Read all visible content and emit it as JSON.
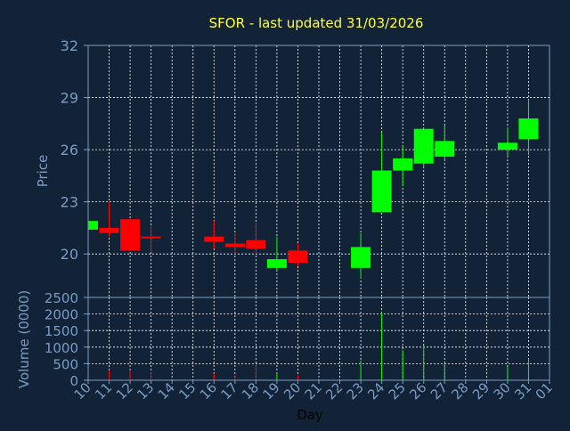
{
  "colors": {
    "background": "#122337",
    "grid": "#ffffff",
    "axis_text": "#7a9cc4",
    "title": "#ffff3c",
    "up": "#00ff00",
    "down": "#ff0000",
    "xlabel": "#000000"
  },
  "chart_data": {
    "type": "candlestick",
    "title": "SFOR - last updated 31/03/2026",
    "ylabel": "Price",
    "volume_ylabel": "Volume (0000)",
    "xlabel": "Day",
    "price_ylim": [
      17.5,
      32
    ],
    "price_ticks": [
      20,
      23,
      26,
      29,
      32
    ],
    "volume_ylim": [
      0,
      2500
    ],
    "volume_ticks": [
      0,
      500,
      1000,
      1500,
      2000,
      2500
    ],
    "x_tick_labels": [
      "10",
      "11",
      "12",
      "13",
      "14",
      "15",
      "16",
      "17",
      "18",
      "19",
      "20",
      "21",
      "22",
      "23",
      "24",
      "25",
      "26",
      "27",
      "28",
      "29",
      "30",
      "31",
      "01"
    ],
    "grid": true,
    "candles": [
      {
        "day": "10",
        "open": 21.4,
        "close": 21.9,
        "high": 21.9,
        "low": 21.4,
        "volume": 0
      },
      {
        "day": "11",
        "open": 21.5,
        "close": 21.2,
        "high": 23.0,
        "low": 21.0,
        "volume": 300
      },
      {
        "day": "12",
        "open": 22.0,
        "close": 20.2,
        "high": 22.0,
        "low": 20.2,
        "volume": 300
      },
      {
        "day": "13",
        "open": 21.0,
        "close": 20.9,
        "high": 21.6,
        "low": 20.1,
        "volume": 250
      },
      {
        "day": "16",
        "open": 21.0,
        "close": 20.7,
        "high": 21.9,
        "low": 20.3,
        "volume": 200
      },
      {
        "day": "17",
        "open": 20.6,
        "close": 20.4,
        "high": 21.2,
        "low": 20.0,
        "volume": 120
      },
      {
        "day": "18",
        "open": 20.8,
        "close": 20.3,
        "high": 21.8,
        "low": 20.0,
        "volume": 450
      },
      {
        "day": "19",
        "open": 19.2,
        "close": 19.7,
        "high": 21.0,
        "low": 19.1,
        "volume": 200
      },
      {
        "day": "20",
        "open": 20.2,
        "close": 19.5,
        "high": 20.6,
        "low": 19.3,
        "volume": 150
      },
      {
        "day": "23",
        "open": 19.2,
        "close": 20.4,
        "high": 21.2,
        "low": 18.6,
        "volume": 600
      },
      {
        "day": "24",
        "open": 22.4,
        "close": 24.8,
        "high": 27.0,
        "low": 22.4,
        "volume": 2050
      },
      {
        "day": "25",
        "open": 24.8,
        "close": 25.5,
        "high": 26.2,
        "low": 23.9,
        "volume": 900
      },
      {
        "day": "26",
        "open": 25.2,
        "close": 27.2,
        "high": 27.2,
        "low": 25.0,
        "volume": 1050
      },
      {
        "day": "27",
        "open": 25.6,
        "close": 26.5,
        "high": 27.4,
        "low": 25.4,
        "volume": 500
      },
      {
        "day": "30",
        "open": 26.0,
        "close": 26.4,
        "high": 27.3,
        "low": 25.6,
        "volume": 400
      },
      {
        "day": "31",
        "open": 26.6,
        "close": 27.8,
        "high": 28.9,
        "low": 25.7,
        "volume": 650
      }
    ]
  }
}
